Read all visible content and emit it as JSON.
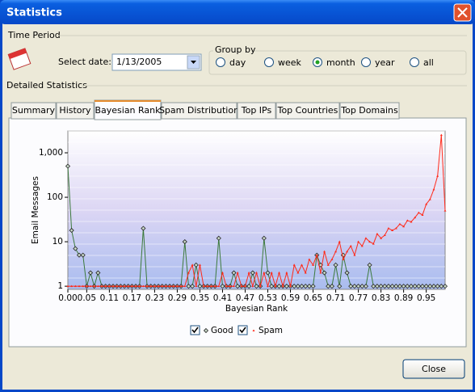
{
  "window": {
    "title": "Statistics"
  },
  "time_period": {
    "label": "Time Period",
    "select_date_label": "Select date:",
    "date": "1/13/2005"
  },
  "group_by": {
    "label": "Group by",
    "options": [
      "day",
      "week",
      "month",
      "year",
      "all"
    ],
    "selected_index": 2
  },
  "detailed": {
    "label": "Detailed Statistics",
    "tabs": [
      "Summary",
      "History",
      "Bayesian Rank",
      "Spam Distribution",
      "Top IPs",
      "Top Countries",
      "Top Domains"
    ],
    "active_tab": 2
  },
  "chart_data": {
    "type": "line",
    "xlabel": "Bayesian Rank",
    "ylabel": "Email Messages",
    "log_y": true,
    "x": [
      0,
      0.01,
      0.02,
      0.03,
      0.04,
      0.05,
      0.06,
      0.07,
      0.08,
      0.09,
      0.1,
      0.11,
      0.12,
      0.13,
      0.14,
      0.15,
      0.16,
      0.17,
      0.18,
      0.19,
      0.2,
      0.21,
      0.22,
      0.23,
      0.24,
      0.25,
      0.26,
      0.27,
      0.28,
      0.29,
      0.3,
      0.31,
      0.32,
      0.33,
      0.34,
      0.35,
      0.36,
      0.37,
      0.38,
      0.39,
      0.4,
      0.41,
      0.42,
      0.43,
      0.44,
      0.45,
      0.46,
      0.47,
      0.48,
      0.49,
      0.5,
      0.51,
      0.52,
      0.53,
      0.54,
      0.55,
      0.56,
      0.57,
      0.58,
      0.59,
      0.6,
      0.61,
      0.62,
      0.63,
      0.64,
      0.65,
      0.66,
      0.67,
      0.68,
      0.69,
      0.7,
      0.71,
      0.72,
      0.73,
      0.74,
      0.75,
      0.76,
      0.77,
      0.78,
      0.79,
      0.8,
      0.81,
      0.82,
      0.83,
      0.84,
      0.85,
      0.86,
      0.87,
      0.88,
      0.89,
      0.9,
      0.91,
      0.92,
      0.93,
      0.94,
      0.95,
      0.96,
      0.97,
      0.98,
      0.99,
      1
    ],
    "series": [
      {
        "name": "Good",
        "color": "#3c7a3c",
        "marker": "diamond",
        "values": [
          500,
          18,
          7,
          5,
          5,
          1,
          2,
          1,
          2,
          1,
          1,
          1,
          1,
          1,
          1,
          1,
          1,
          1,
          1,
          1,
          20,
          1,
          1,
          1,
          1,
          1,
          1,
          1,
          1,
          1,
          1,
          10,
          1,
          1,
          3,
          1,
          1,
          1,
          1,
          1,
          12,
          1,
          1,
          1,
          2,
          1,
          1,
          1,
          1,
          2,
          1,
          1,
          12,
          2,
          1,
          1,
          1,
          1,
          1,
          1,
          1,
          1,
          1,
          1,
          1,
          1,
          5,
          3,
          2,
          1,
          1,
          3,
          1,
          5,
          2,
          1,
          1,
          1,
          1,
          1,
          3,
          1,
          1,
          1,
          1,
          1,
          1,
          1,
          1,
          1,
          1,
          1,
          1,
          1,
          1,
          1,
          1,
          1,
          1,
          1,
          1
        ]
      },
      {
        "name": "Spam",
        "color": "#ff2a1a",
        "marker": "triangle",
        "values": [
          1,
          1,
          1,
          1,
          1,
          1,
          1,
          1,
          1,
          1,
          1,
          1,
          1,
          1,
          1,
          1,
          1,
          1,
          1,
          1,
          1,
          1,
          1,
          1,
          1,
          1,
          1,
          1,
          1,
          1,
          1,
          1,
          2,
          3,
          1,
          3,
          1,
          1,
          1,
          1,
          1,
          2,
          1,
          1,
          1,
          2,
          1,
          1,
          2,
          1,
          2,
          1,
          2,
          1,
          2,
          1,
          2,
          1,
          2,
          1,
          3,
          2,
          3,
          2,
          4,
          3,
          5,
          2,
          6,
          3,
          4,
          6,
          10,
          4,
          6,
          8,
          5,
          10,
          8,
          12,
          10,
          9,
          15,
          12,
          14,
          20,
          18,
          20,
          25,
          22,
          30,
          28,
          35,
          45,
          40,
          70,
          90,
          150,
          300,
          2500,
          50
        ]
      }
    ],
    "xlim": [
      0,
      1
    ],
    "xticks": [
      {
        "value": 0,
        "label": "0.00"
      },
      {
        "value": 0.05,
        "label": "0.05"
      },
      {
        "value": 0.11,
        "label": "0.11"
      },
      {
        "value": 0.17,
        "label": "0.17"
      },
      {
        "value": 0.23,
        "label": "0.23"
      },
      {
        "value": 0.29,
        "label": "0.29"
      },
      {
        "value": 0.35,
        "label": "0.35"
      },
      {
        "value": 0.41,
        "label": "0.41"
      },
      {
        "value": 0.47,
        "label": "0.47"
      },
      {
        "value": 0.53,
        "label": "0.53"
      },
      {
        "value": 0.59,
        "label": "0.59"
      },
      {
        "value": 0.65,
        "label": "0.65"
      },
      {
        "value": 0.71,
        "label": "0.71"
      },
      {
        "value": 0.77,
        "label": "0.77"
      },
      {
        "value": 0.83,
        "label": "0.83"
      },
      {
        "value": 0.89,
        "label": "0.89"
      },
      {
        "value": 0.95,
        "label": "0.95"
      }
    ],
    "ylim": [
      0.85,
      3100
    ],
    "yticks": [
      1,
      10,
      100,
      {
        "value": 1000,
        "label": "1,000"
      }
    ]
  },
  "buttons": {
    "close": "Close"
  }
}
